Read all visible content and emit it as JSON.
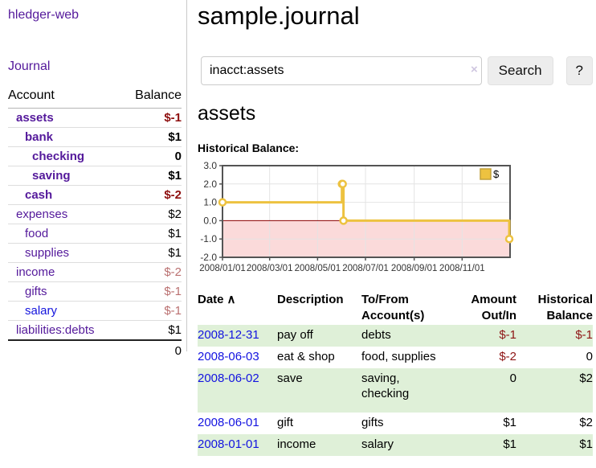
{
  "app": {
    "title": "hledger-web",
    "journal_link": "Journal"
  },
  "colors": {
    "accent_purple": "#54199b",
    "link_blue": "#1414dd",
    "negative_strong": "#8e0f0f",
    "negative_muted": "#ba7070",
    "row_green": "#dff0d8"
  },
  "sidebar": {
    "header": {
      "account": "Account",
      "balance": "Balance"
    },
    "accounts": [
      {
        "name": "assets",
        "balance": "$-1"
      },
      {
        "name": "bank",
        "balance": "$1"
      },
      {
        "name": "checking",
        "balance": "0"
      },
      {
        "name": "saving",
        "balance": "$1"
      },
      {
        "name": "cash",
        "balance": "$-2"
      },
      {
        "name": "expenses",
        "balance": "$2"
      },
      {
        "name": "food",
        "balance": "$1"
      },
      {
        "name": "supplies",
        "balance": "$1"
      },
      {
        "name": "income",
        "balance": "$-2"
      },
      {
        "name": "gifts",
        "balance": "$-1"
      },
      {
        "name": "salary",
        "balance": "$-1"
      },
      {
        "name": "liabilities:debts",
        "balance": "$1"
      }
    ],
    "total": "0"
  },
  "main": {
    "title": "sample.journal",
    "search": {
      "value": "inacct:assets",
      "clear_icon": "×",
      "search_button": "Search",
      "help_button": "?"
    },
    "account_heading": "assets",
    "section_label": "Historical Balance:"
  },
  "chart_data": {
    "type": "line",
    "title": "Historical Balance:",
    "legend": [
      {
        "label": "$",
        "color": "#edc240"
      }
    ],
    "legend_position": "top-right",
    "grid": true,
    "series": [
      {
        "name": "$",
        "step": true,
        "points": [
          [
            "2008-01-01",
            1
          ],
          [
            "2008-06-01",
            2
          ],
          [
            "2008-06-02",
            2
          ],
          [
            "2008-06-03",
            0
          ],
          [
            "2008-12-31",
            -1
          ]
        ]
      }
    ],
    "ylim": [
      -2,
      3
    ],
    "x_range": [
      "2008-01-01",
      "2009-01-01"
    ],
    "yticks": [
      {
        "value": 3,
        "label": "3.0"
      },
      {
        "value": 2,
        "label": "2.0"
      },
      {
        "value": 1,
        "label": "1.0"
      },
      {
        "value": 0,
        "label": "0.0"
      },
      {
        "value": -1,
        "label": "-1.0"
      },
      {
        "value": -2,
        "label": "-2.0"
      }
    ],
    "xticks": [
      {
        "date": "2008-01-01",
        "label": "2008/01/01"
      },
      {
        "date": "2008-03-01",
        "label": "2008/03/01"
      },
      {
        "date": "2008-05-01",
        "label": "2008/05/01"
      },
      {
        "date": "2008-07-01",
        "label": "2008/07/01"
      },
      {
        "date": "2008-09-01",
        "label": "2008/09/01"
      },
      {
        "date": "2008-11-01",
        "label": "2008/11/01"
      }
    ],
    "colors": {
      "line": "#edc240",
      "marker_fill": "#ffffff",
      "negative_region": "#fbdada",
      "zero_line": "#8b0000",
      "border": "#545454",
      "gridline": "#e4e4e4"
    }
  },
  "register": {
    "headers": {
      "date": "Date",
      "sort_icon": "∧",
      "description": "Description",
      "accounts": "To/From Account(s)",
      "amount": "Amount Out/In",
      "balance": "Historical Balance"
    },
    "rows": [
      {
        "date": "2008-12-31",
        "description": "pay off",
        "accounts": "debts",
        "amount": "$-1",
        "balance": "$-1"
      },
      {
        "date": "2008-06-03",
        "description": "eat & shop",
        "accounts": "food, supplies",
        "amount": "$-2",
        "balance": "0"
      },
      {
        "date": "2008-06-02",
        "description": "save",
        "accounts": "saving,\nchecking",
        "amount": "0",
        "balance": "$2"
      },
      {
        "date": "2008-06-01",
        "description": "gift",
        "accounts": "gifts",
        "amount": "$1",
        "balance": "$2"
      },
      {
        "date": "2008-01-01",
        "description": "income",
        "accounts": "salary",
        "amount": "$1",
        "balance": "$1"
      }
    ]
  }
}
